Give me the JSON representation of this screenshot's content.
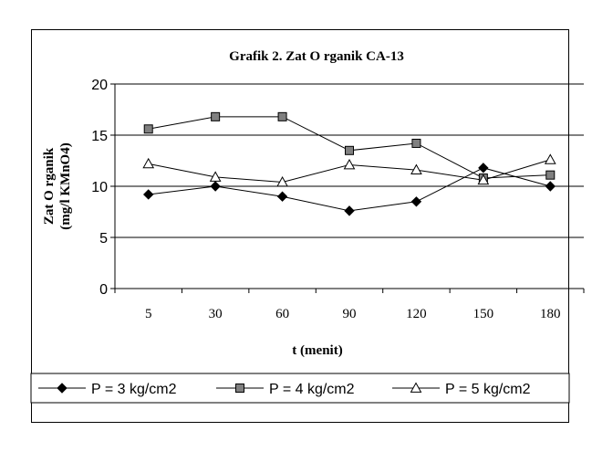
{
  "chart_data": {
    "type": "line",
    "title": "Grafik 2. Zat O rganik CA-13",
    "xlabel": "t (menit)",
    "ylabel_line1": "Zat O rganik",
    "ylabel_line2": "(mg/l KMnO4)",
    "categories": [
      "5",
      "30",
      "60",
      "90",
      "120",
      "150",
      "180"
    ],
    "ylim": [
      0,
      20
    ],
    "yticks": [
      0,
      5,
      10,
      15,
      20
    ],
    "grid": true,
    "legend_position": "bottom",
    "series": [
      {
        "name": "P = 3 kg/cm2",
        "marker": "diamond",
        "color": "#000000",
        "fill": "#000000",
        "values": [
          9.2,
          10.0,
          9.0,
          7.6,
          8.5,
          11.8,
          10.0
        ]
      },
      {
        "name": "P = 4 kg/cm2",
        "marker": "square",
        "color": "#000000",
        "fill": "#808080",
        "values": [
          15.6,
          16.8,
          16.8,
          13.5,
          14.2,
          10.8,
          11.1
        ]
      },
      {
        "name": "P = 5 kg/cm2",
        "marker": "triangle",
        "color": "#000000",
        "fill": "#ffffff",
        "values": [
          12.2,
          10.9,
          10.4,
          12.1,
          11.6,
          10.6,
          12.6
        ]
      }
    ]
  }
}
